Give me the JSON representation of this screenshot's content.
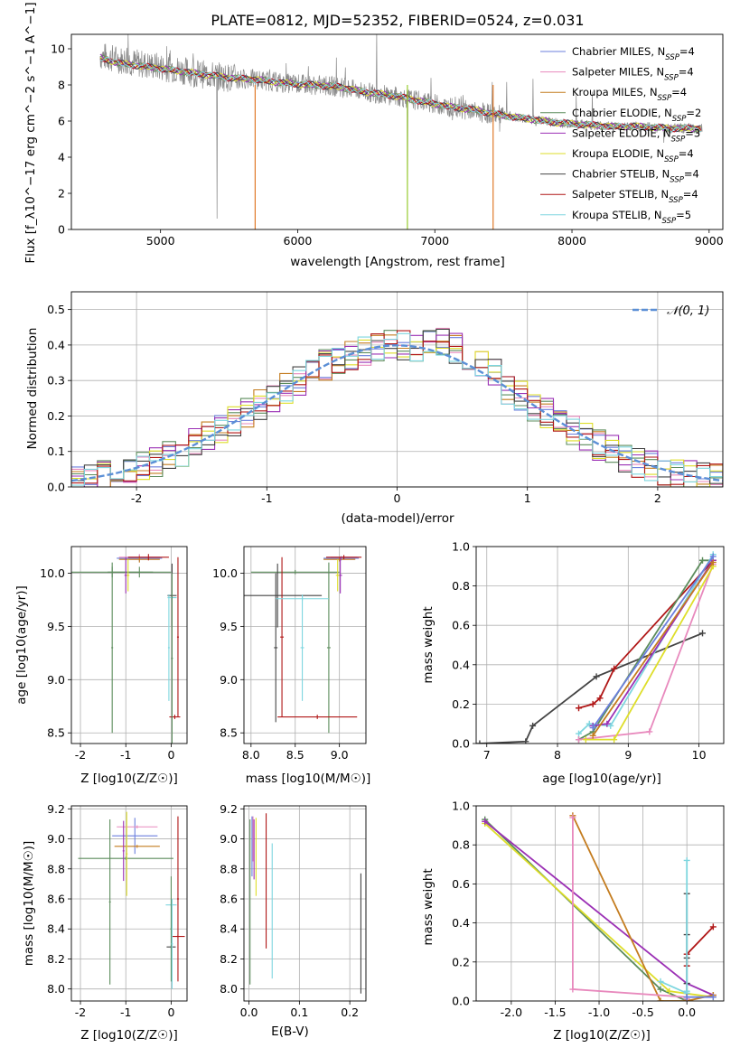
{
  "chart_data": [
    {
      "id": "spectrum",
      "type": "line",
      "title": "PLATE=0812, MJD=52352, FIBERID=0524, z=0.031",
      "xlabel": "wavelength [Angstrom, rest frame]",
      "ylabel": "Flux [f_λ10^−17 erg cm^−2 s^−1 A^−1]",
      "xlim": [
        4350,
        9100
      ],
      "ylim": [
        0,
        10.8
      ],
      "xticks": [
        5000,
        6000,
        7000,
        8000,
        9000
      ],
      "yticks": [
        0,
        2,
        4,
        6,
        8,
        10
      ],
      "grid": false,
      "legend_position": "top-right",
      "data_trace": {
        "x": [
          4560,
          4700,
          4900,
          5100,
          5300,
          5500,
          5700,
          5900,
          6100,
          6300,
          6500,
          6700,
          6900,
          7100,
          7300,
          7500,
          7700,
          7900,
          8100,
          8300,
          8500,
          8700,
          8950
        ],
        "y": [
          9.6,
          9.4,
          9.1,
          8.9,
          8.6,
          8.4,
          8.3,
          8.1,
          8.0,
          7.9,
          7.6,
          7.4,
          7.1,
          6.8,
          6.5,
          6.3,
          6.1,
          5.9,
          5.8,
          5.7,
          5.7,
          5.6,
          5.6
        ]
      },
      "series": [
        {
          "name": "Chabrier MILES",
          "nssp": "4",
          "color": "#6b7fdd"
        },
        {
          "name": "Salpeter MILES",
          "nssp": "4",
          "color": "#e889bd"
        },
        {
          "name": "Kroupa MILES",
          "nssp": "4",
          "color": "#c47c1f"
        },
        {
          "name": "Chabrier ELODIE",
          "nssp": "2",
          "color": "#5c8c5c"
        },
        {
          "name": "Salpeter ELODIE",
          "nssp": "3",
          "color": "#9b30b5"
        },
        {
          "name": "Kroupa ELODIE",
          "nssp": "4",
          "color": "#dede2a"
        },
        {
          "name": "Chabrier STELIB",
          "nssp": "4",
          "color": "#444444"
        },
        {
          "name": "Salpeter STELIB",
          "nssp": "4",
          "color": "#b01616"
        },
        {
          "name": "Kroupa STELIB",
          "nssp": "5",
          "color": "#7ed6df"
        }
      ],
      "model_x": [
        4560,
        4700,
        4900,
        5100,
        5300,
        5500,
        5700,
        5900,
        6100,
        6300,
        6500,
        6700,
        6900,
        7100,
        7300,
        7500,
        7700,
        7900,
        8100,
        8300,
        8500,
        8700,
        8950
      ],
      "model_y": [
        9.5,
        9.2,
        9.0,
        8.8,
        8.6,
        8.4,
        8.3,
        8.1,
        8.0,
        7.9,
        7.6,
        7.4,
        7.1,
        6.8,
        6.6,
        6.3,
        6.1,
        5.9,
        5.8,
        5.7,
        5.7,
        5.6,
        5.6
      ]
    },
    {
      "id": "residuals",
      "type": "line",
      "xlabel": "(data-model)/error",
      "ylabel": "Normed distribution",
      "xlim": [
        -2.5,
        2.5
      ],
      "ylim": [
        0,
        0.55
      ],
      "xticks": [
        -2,
        -1,
        0,
        1,
        2
      ],
      "yticks": [
        0.0,
        0.1,
        0.2,
        0.3,
        0.4,
        0.5
      ],
      "grid": true,
      "legend_position": "top-right",
      "gaussian_label": "𝒩(0, 1)",
      "gaussian_color": "#5b8fd6",
      "bin_width": 0.1
    },
    {
      "id": "age-vs-z",
      "type": "scatter",
      "xlabel": "Z [log10(Z/Z☉)]",
      "ylabel": "age [log10(age/yr)]",
      "xlim": [
        -2.2,
        0.35
      ],
      "ylim": [
        8.4,
        10.25
      ],
      "xticks": [
        -2,
        -1,
        0
      ],
      "yticks": [
        8.5,
        9.0,
        9.5,
        10.0
      ],
      "grid": true,
      "points": [
        {
          "c": 3,
          "x": -1.3,
          "y": 10.01,
          "xe": 0.9,
          "ye": 0.05
        },
        {
          "c": 3,
          "x": -0.7,
          "y": 10.01,
          "xe": 0.7,
          "ye": 0.05
        },
        {
          "c": 3,
          "x": -1.3,
          "y": 9.3,
          "xe": 0.02,
          "ye": 0.8
        },
        {
          "c": 8,
          "x": 0.02,
          "y": 9.77,
          "xe": 0.1,
          "ye": 0.05
        },
        {
          "c": 6,
          "x": 0.02,
          "y": 9.79,
          "xe": 0.1,
          "ye": 0.3
        },
        {
          "c": 7,
          "x": 0.08,
          "y": 8.65,
          "xe": 0.12,
          "ye": 0.02
        },
        {
          "c": 7,
          "x": 0.15,
          "y": 9.4,
          "xe": 0.02,
          "ye": 0.75
        },
        {
          "c": 0,
          "x": -0.7,
          "y": 10.14,
          "xe": 0.5,
          "ye": 0.03
        },
        {
          "c": 1,
          "x": -0.7,
          "y": 10.15,
          "xe": 0.45,
          "ye": 0.03
        },
        {
          "c": 2,
          "x": -0.7,
          "y": 10.13,
          "xe": 0.45,
          "ye": 0.03
        },
        {
          "c": 4,
          "x": -1.0,
          "y": 9.98,
          "xe": 0.03,
          "ye": 0.17
        },
        {
          "c": 5,
          "x": -0.95,
          "y": 9.98,
          "xe": 0.03,
          "ye": 0.15
        },
        {
          "c": 7,
          "x": -0.5,
          "y": 10.15,
          "xe": 0.45,
          "ye": 0.03
        },
        {
          "c": 3,
          "x": 0.02,
          "y": 9.2,
          "xe": 0.02,
          "ye": 0.8
        },
        {
          "c": 8,
          "x": -0.05,
          "y": 9.3,
          "xe": 0.02,
          "ye": 0.5
        }
      ]
    },
    {
      "id": "age-vs-mass",
      "type": "scatter",
      "xlabel": "mass [log10(M/M☉)]",
      "ylabel": "",
      "xlim": [
        7.92,
        9.3
      ],
      "ylim": [
        8.4,
        10.25
      ],
      "xticks": [
        8.0,
        8.5,
        9.0
      ],
      "yticks": [
        8.5,
        9.0,
        9.5,
        10.0
      ],
      "grid": true,
      "points": [
        {
          "c": 3,
          "x": 8.5,
          "y": 10.01,
          "xe": 0.5,
          "ye": 0.02
        },
        {
          "c": 3,
          "x": 8.88,
          "y": 9.3,
          "xe": 0.02,
          "ye": 0.8
        },
        {
          "c": 6,
          "x": 8.3,
          "y": 9.79,
          "xe": 0.5,
          "ye": 0.3
        },
        {
          "c": 6,
          "x": 8.28,
          "y": 9.3,
          "xe": 0.02,
          "ye": 0.7
        },
        {
          "c": 7,
          "x": 8.35,
          "y": 9.4,
          "xe": 0.02,
          "ye": 0.75
        },
        {
          "c": 7,
          "x": 8.75,
          "y": 8.65,
          "xe": 0.45,
          "ye": 0.02
        },
        {
          "c": 8,
          "x": 8.58,
          "y": 9.76,
          "xe": 0.3,
          "ye": 0.02
        },
        {
          "c": 8,
          "x": 8.58,
          "y": 9.3,
          "xe": 0.02,
          "ye": 0.5
        },
        {
          "c": 0,
          "x": 9.02,
          "y": 10.14,
          "xe": 0.2,
          "ye": 0.02
        },
        {
          "c": 1,
          "x": 9.05,
          "y": 10.15,
          "xe": 0.15,
          "ye": 0.02
        },
        {
          "c": 2,
          "x": 9.0,
          "y": 10.13,
          "xe": 0.18,
          "ye": 0.02
        },
        {
          "c": 4,
          "x": 9.01,
          "y": 9.98,
          "xe": 0.02,
          "ye": 0.17
        },
        {
          "c": 5,
          "x": 8.98,
          "y": 9.98,
          "xe": 0.02,
          "ye": 0.15
        },
        {
          "c": 7,
          "x": 9.05,
          "y": 10.15,
          "xe": 0.2,
          "ye": 0.02
        }
      ]
    },
    {
      "id": "massweight-vs-age",
      "type": "line",
      "xlabel": "age [log10(age/yr)]",
      "ylabel": "mass weight",
      "xlim": [
        6.85,
        10.35
      ],
      "ylim": [
        0,
        1.0
      ],
      "xticks": [
        7,
        8,
        9,
        10
      ],
      "yticks": [
        0.0,
        0.2,
        0.4,
        0.6,
        0.8,
        1.0
      ],
      "grid": true,
      "lines": [
        {
          "c": 6,
          "x": [
            6.9,
            7.55,
            7.65,
            8.55,
            10.05
          ],
          "y": [
            0.0,
            0.01,
            0.09,
            0.34,
            0.56
          ]
        },
        {
          "c": 7,
          "x": [
            8.3,
            8.5,
            8.6,
            8.8,
            10.2
          ],
          "y": [
            0.18,
            0.2,
            0.23,
            0.38,
            0.93
          ]
        },
        {
          "c": 3,
          "x": [
            8.3,
            8.5,
            10.05,
            10.2
          ],
          "y": [
            0.02,
            0.06,
            0.93,
            0.93
          ]
        },
        {
          "c": 8,
          "x": [
            8.3,
            8.45,
            8.75,
            10.2
          ],
          "y": [
            0.05,
            0.1,
            0.09,
            0.96
          ]
        },
        {
          "c": 1,
          "x": [
            8.3,
            9.3,
            10.2
          ],
          "y": [
            0.02,
            0.06,
            0.91
          ]
        },
        {
          "c": 5,
          "x": [
            8.4,
            8.8,
            10.2
          ],
          "y": [
            0.02,
            0.02,
            0.9
          ]
        },
        {
          "c": 4,
          "x": [
            8.5,
            8.7,
            10.2
          ],
          "y": [
            0.09,
            0.1,
            0.93
          ]
        },
        {
          "c": 2,
          "x": [
            8.5,
            10.2
          ],
          "y": [
            0.04,
            0.92
          ]
        },
        {
          "c": 0,
          "x": [
            8.5,
            10.2
          ],
          "y": [
            0.08,
            0.95
          ]
        }
      ]
    },
    {
      "id": "mass-vs-z",
      "type": "scatter",
      "xlabel": "Z [log10(Z/Z☉)]",
      "ylabel": "mass [log10(M/M☉)]",
      "xlim": [
        -2.2,
        0.35
      ],
      "ylim": [
        7.92,
        9.22
      ],
      "xticks": [
        -2,
        -1,
        0
      ],
      "yticks": [
        8.0,
        8.2,
        8.4,
        8.6,
        8.8,
        9.0,
        9.2
      ],
      "grid": true,
      "points": [
        {
          "c": 3,
          "x": -1.0,
          "y": 8.87,
          "xe": 1.05,
          "ye": 0.01
        },
        {
          "c": 3,
          "x": -1.35,
          "y": 8.58,
          "xe": 0.02,
          "ye": 0.55
        },
        {
          "c": 0,
          "x": -0.8,
          "y": 9.02,
          "xe": 0.5,
          "ye": 0.12
        },
        {
          "c": 1,
          "x": -0.75,
          "y": 9.08,
          "xe": 0.45,
          "ye": 0.01
        },
        {
          "c": 2,
          "x": -0.75,
          "y": 8.95,
          "xe": 0.5,
          "ye": 0.01
        },
        {
          "c": 4,
          "x": -1.05,
          "y": 8.92,
          "xe": 0.02,
          "ye": 0.2
        },
        {
          "c": 5,
          "x": -0.98,
          "y": 8.9,
          "xe": 0.02,
          "ye": 0.28
        },
        {
          "c": 7,
          "x": 0.15,
          "y": 8.35,
          "xe": 0.15,
          "ye": 0.01
        },
        {
          "c": 7,
          "x": 0.15,
          "y": 8.6,
          "xe": 0.02,
          "ye": 0.55
        },
        {
          "c": 6,
          "x": 0.0,
          "y": 8.28,
          "xe": 0.1,
          "ye": 0.01
        },
        {
          "c": 8,
          "x": 0.0,
          "y": 8.56,
          "xe": 0.12,
          "ye": 0.01
        },
        {
          "c": 3,
          "x": 0.0,
          "y": 8.4,
          "xe": 0.02,
          "ye": 0.35
        },
        {
          "c": 8,
          "x": 0.02,
          "y": 8.3,
          "xe": 0.02,
          "ye": 0.3
        }
      ]
    },
    {
      "id": "mass-vs-ebv",
      "type": "scatter",
      "xlabel": "E(B-V)",
      "ylabel": "",
      "xlim": [
        -0.01,
        0.232
      ],
      "ylim": [
        7.92,
        9.22
      ],
      "xticks": [
        0.0,
        0.1,
        0.2
      ],
      "yticks": [
        8.0,
        8.2,
        8.4,
        8.6,
        8.8,
        9.0,
        9.2
      ],
      "grid": true,
      "points": [
        {
          "c": 3,
          "x": 0.002,
          "y": 8.58,
          "xe": 0.0,
          "ye": 0.55
        },
        {
          "c": 0,
          "x": 0.006,
          "y": 8.95,
          "xe": 0.0,
          "ye": 0.2
        },
        {
          "c": 1,
          "x": 0.008,
          "y": 9.0,
          "xe": 0.0,
          "ye": 0.15
        },
        {
          "c": 4,
          "x": 0.01,
          "y": 8.93,
          "xe": 0.0,
          "ye": 0.2
        },
        {
          "c": 5,
          "x": 0.014,
          "y": 8.88,
          "xe": 0.0,
          "ye": 0.26
        },
        {
          "c": 7,
          "x": 0.034,
          "y": 8.72,
          "xe": 0.0,
          "ye": 0.45
        },
        {
          "c": 8,
          "x": 0.046,
          "y": 8.52,
          "xe": 0.0,
          "ye": 0.45
        },
        {
          "c": 6,
          "x": 0.222,
          "y": 8.37,
          "xe": 0.0,
          "ye": 0.4
        }
      ]
    },
    {
      "id": "massweight-vs-z",
      "type": "line",
      "xlabel": "Z [log10(Z/Z☉)]",
      "ylabel": "mass weight",
      "xlim": [
        -2.4,
        0.42
      ],
      "ylim": [
        0,
        1.0
      ],
      "xticks": [
        -2.0,
        -1.5,
        -1.0,
        -0.5,
        0.0
      ],
      "yticks": [
        0.0,
        0.2,
        0.4,
        0.6,
        0.8,
        1.0
      ],
      "grid": true,
      "lines": [
        {
          "c": 3,
          "x": [
            -2.3,
            -0.3,
            0.0
          ],
          "y": [
            0.93,
            0.06,
            0.0
          ]
        },
        {
          "c": 5,
          "x": [
            -2.3,
            -0.2,
            0.3
          ],
          "y": [
            0.91,
            0.05,
            0.02
          ]
        },
        {
          "c": 4,
          "x": [
            -2.3,
            0.0,
            0.3
          ],
          "y": [
            0.92,
            0.09,
            0.03
          ]
        },
        {
          "c": 2,
          "x": [
            -1.3,
            -0.3,
            0.0,
            0.3
          ],
          "y": [
            0.95,
            0.0,
            0.0,
            0.03
          ]
        },
        {
          "c": 1,
          "x": [
            -1.3,
            -1.3,
            0.0,
            0.0
          ],
          "y": [
            0.94,
            0.06,
            0.02,
            0.01
          ]
        },
        {
          "c": 6,
          "x": [
            0.0,
            0.0,
            0.0,
            0.0,
            0.0
          ],
          "y": [
            0.02,
            0.09,
            0.22,
            0.34,
            0.55
          ]
        },
        {
          "c": 7,
          "x": [
            0.0,
            0.0,
            0.3
          ],
          "y": [
            0.18,
            0.24,
            0.38
          ]
        },
        {
          "c": 8,
          "x": [
            -0.3,
            0.0,
            0.0,
            0.0
          ],
          "y": [
            0.1,
            0.04,
            0.05,
            0.72
          ]
        },
        {
          "c": 0,
          "x": [
            0.0,
            0.3
          ],
          "y": [
            0.02,
            0.02
          ]
        }
      ]
    }
  ]
}
